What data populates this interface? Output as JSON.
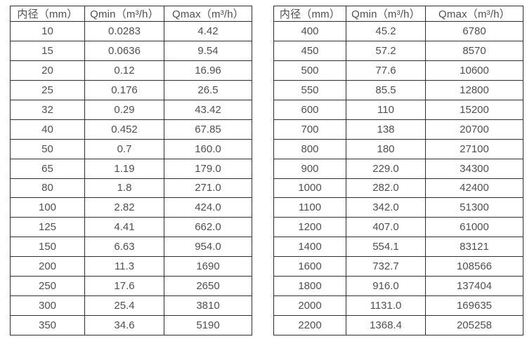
{
  "colors": {
    "border": "#2f2f2f",
    "text": "#4f4f4f",
    "background": "#ffffff"
  },
  "chart_data": [
    {
      "type": "table",
      "title": "",
      "headers": [
        "内径（mm）",
        "Qmin（m³/h）",
        "Qmax（m³/h）"
      ],
      "rows": [
        [
          "10",
          "0.0283",
          "4.42"
        ],
        [
          "15",
          "0.0636",
          "9.54"
        ],
        [
          "20",
          "0.12",
          "16.96"
        ],
        [
          "25",
          "0.176",
          "26.5"
        ],
        [
          "32",
          "0.29",
          "43.42"
        ],
        [
          "40",
          "0.452",
          "67.85"
        ],
        [
          "50",
          "0.7",
          "160.0"
        ],
        [
          "65",
          "1.19",
          "179.0"
        ],
        [
          "80",
          "1.8",
          "271.0"
        ],
        [
          "100",
          "2.82",
          "424.0"
        ],
        [
          "125",
          "4.41",
          "662.0"
        ],
        [
          "150",
          "6.63",
          "954.0"
        ],
        [
          "200",
          "11.3",
          "1690"
        ],
        [
          "250",
          "17.6",
          "2650"
        ],
        [
          "300",
          "25.4",
          "3810"
        ],
        [
          "350",
          "34.6",
          "5190"
        ]
      ]
    },
    {
      "type": "table",
      "title": "",
      "headers": [
        "内径（mm）",
        "Qmin（m³/h）",
        "Qmax（m³/h）"
      ],
      "rows": [
        [
          "400",
          "45.2",
          "6780"
        ],
        [
          "450",
          "57.2",
          "8570"
        ],
        [
          "500",
          "77.6",
          "10600"
        ],
        [
          "550",
          "85.5",
          "12800"
        ],
        [
          "600",
          "110",
          "15200"
        ],
        [
          "700",
          "138",
          "20700"
        ],
        [
          "800",
          "180",
          "27100"
        ],
        [
          "900",
          "229.0",
          "34300"
        ],
        [
          "1000",
          "282.0",
          "42400"
        ],
        [
          "1100",
          "342.0",
          "51300"
        ],
        [
          "1200",
          "407.0",
          "61000"
        ],
        [
          "1400",
          "554.1",
          "83121"
        ],
        [
          "1600",
          "732.7",
          "108566"
        ],
        [
          "1800",
          "916.0",
          "137404"
        ],
        [
          "2000",
          "1131.0",
          "169635"
        ],
        [
          "2200",
          "1368.4",
          "205258"
        ]
      ]
    }
  ]
}
